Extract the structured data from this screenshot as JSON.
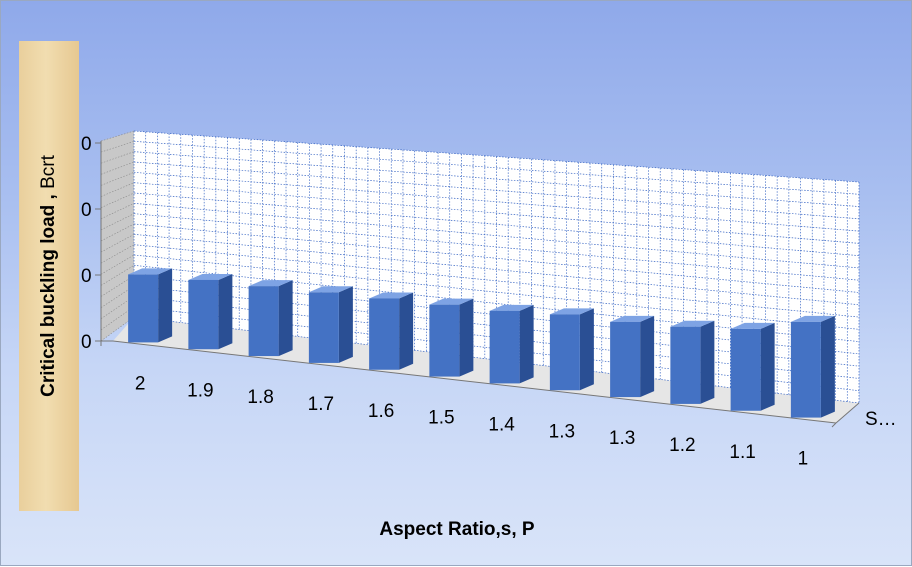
{
  "chart_data": {
    "type": "bar",
    "title": "",
    "categories": [
      "2",
      "1.9",
      "1.8",
      "1.7",
      "1.6",
      "1.5",
      "1.4",
      "1.3",
      "1.3",
      "1.2",
      "1.1",
      "1"
    ],
    "series": [
      {
        "name": "S…",
        "values": [
          10.3,
          10.5,
          10.6,
          10.7,
          10.8,
          10.9,
          11.0,
          11.5,
          11.4,
          11.7,
          12.4,
          14.5
        ],
        "color": "#4472c4"
      }
    ],
    "ylim": [
      0,
      30
    ],
    "yticks": [
      "0",
      "0",
      "0",
      "0"
    ],
    "xlabel": "Aspect Ratio,s, P",
    "ylabel_main": "Critical buckling load ,",
    "ylabel_unit": "Bcrt",
    "legend": "right",
    "grid": true
  }
}
